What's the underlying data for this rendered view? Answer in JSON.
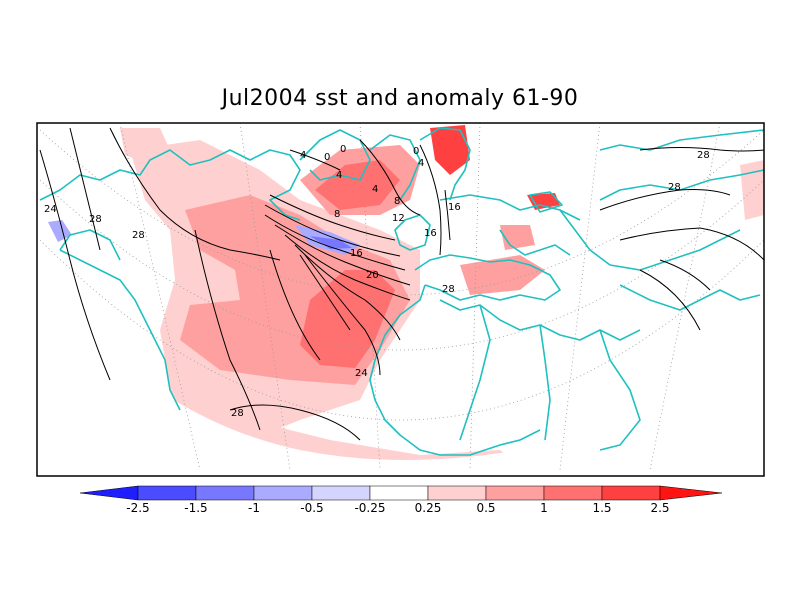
{
  "title": "Jul2004 sst and anomaly 61-90",
  "colorbar": {
    "labels": [
      "-2.5",
      "-1.5",
      "-1",
      "-0.5",
      "-0.25",
      "0.25",
      "0.5",
      "1",
      "1.5",
      "2.5"
    ],
    "colors": [
      "#1e1eff",
      "#4b4bff",
      "#7878ff",
      "#aaaaff",
      "#d4d4ff",
      "#ffffff",
      "#ffd0d0",
      "#ffa0a0",
      "#ff7070",
      "#ff4040",
      "#ff1414"
    ]
  },
  "contour_labels": [
    "24",
    "28",
    "28",
    "28",
    "4",
    "4",
    "4",
    "0",
    "0",
    "0",
    "4",
    "8",
    "8",
    "12",
    "16",
    "16",
    "16",
    "20",
    "24",
    "28",
    "28",
    "28"
  ],
  "colors": {
    "coastline": "#20c0c0",
    "contour": "#000000",
    "grid": "#999999",
    "warm_light": "#ffd0d0",
    "warm_mid": "#ffa0a0",
    "warm_strong": "#ff7070",
    "cool": "#aaaaff"
  }
}
